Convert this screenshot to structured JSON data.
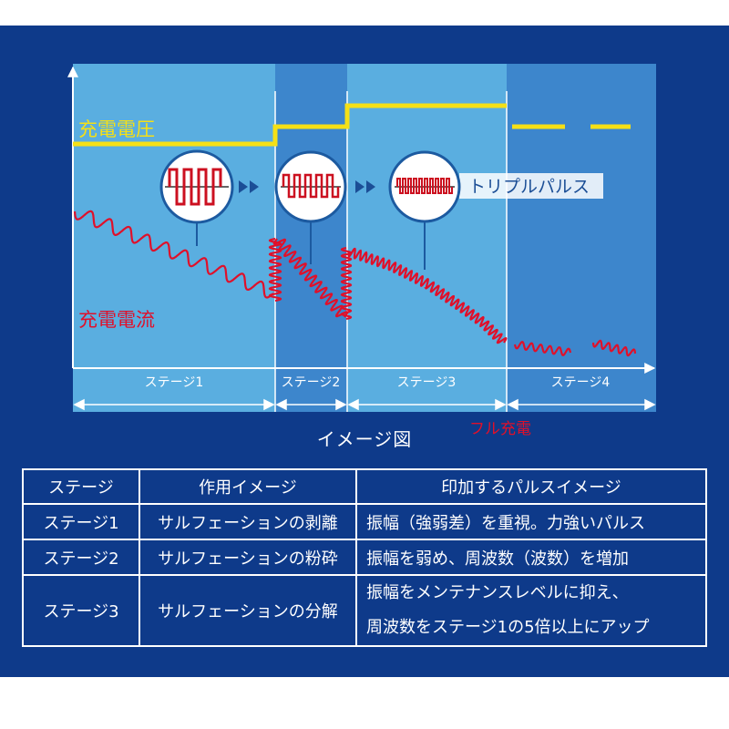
{
  "diagram": {
    "voltage_label": "充電電圧",
    "current_label": "充電電流",
    "pulse_label": "トリプルパルス",
    "full_charge_label": "フル充電",
    "stages": [
      "ステージ1",
      "ステージ2",
      "ステージ3",
      "ステージ4"
    ],
    "title": "イメージ図",
    "colors": {
      "background": "#0e3a8a",
      "stage1": "#5aaee0",
      "stage2": "#3d86cc",
      "stage3": "#5aaee0",
      "stage4": "#3d86cc",
      "voltage": "#f5e016",
      "current": "#e0102a",
      "pulse_wave": "#cc1020"
    },
    "icons": [
      "sine-pulse-icon",
      "fast-pulse-icon",
      "triple-pulse-icon",
      "double-arrow-icon"
    ]
  },
  "table": {
    "headers": [
      "ステージ",
      "作用イメージ",
      "印加するパルスイメージ"
    ],
    "rows": [
      {
        "stage": "ステージ1",
        "effect": "サルフェーションの剥離",
        "pulse": [
          "振幅（強弱差）を重視。力強いパルス"
        ]
      },
      {
        "stage": "ステージ2",
        "effect": "サルフェーションの粉砕",
        "pulse": [
          "振幅を弱め、周波数（波数）を増加"
        ]
      },
      {
        "stage": "ステージ3",
        "effect": "サルフェーションの分解",
        "pulse": [
          "振幅をメンテナンスレベルに抑え、",
          "周波数をステージ1の5倍以上にアップ"
        ]
      }
    ]
  }
}
